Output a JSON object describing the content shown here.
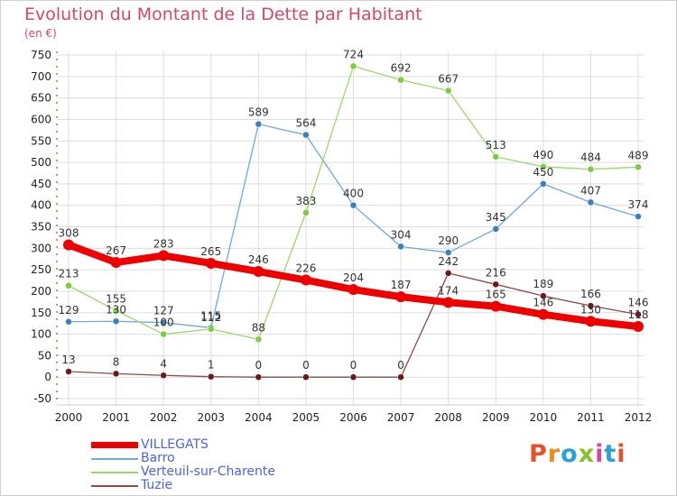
{
  "header": {
    "title": "Evolution du Montant de la Dette par Habitant",
    "subtitle": "(en €)"
  },
  "logo": {
    "text": "Proxiti",
    "colors": [
      "#e8502a",
      "#f08a1c",
      "#2aa0d8",
      "#8bbf2a",
      "#d44a9a",
      "#2aa0d8",
      "#e8502a"
    ]
  },
  "chart_data": {
    "type": "line",
    "title": "Evolution du Montant de la Dette par Habitant",
    "subtitle": "(en €)",
    "xlabel": "",
    "ylabel": "",
    "x": [
      "2000",
      "2001",
      "2002",
      "2003",
      "2004",
      "2005",
      "2006",
      "2007",
      "2008",
      "2009",
      "2010",
      "2011",
      "2012"
    ],
    "ylim": [
      -50,
      750
    ],
    "yticks": [
      -50,
      0,
      50,
      100,
      150,
      200,
      250,
      300,
      350,
      400,
      450,
      500,
      550,
      600,
      650,
      700,
      750
    ],
    "grid": true,
    "legend_position": "bottom-left",
    "series": [
      {
        "name": "VILLEGATS",
        "color": "#ee0000",
        "values": [
          308,
          267,
          283,
          265,
          246,
          226,
          204,
          187,
          174,
          165,
          146,
          130,
          118
        ]
      },
      {
        "name": "Barro",
        "color": "#6fa8dc",
        "values": [
          129,
          130,
          127,
          115,
          589,
          564,
          400,
          304,
          290,
          345,
          450,
          407,
          374
        ]
      },
      {
        "name": "Verteuil-sur-Charente",
        "color": "#9bd86b",
        "values": [
          213,
          155,
          100,
          112,
          88,
          383,
          724,
          692,
          667,
          513,
          490,
          484,
          489
        ]
      },
      {
        "name": "Tuzie",
        "color": "#8a4b4b",
        "values": [
          13,
          8,
          4,
          1,
          0,
          0,
          0,
          0,
          242,
          216,
          189,
          166,
          146
        ]
      }
    ]
  }
}
